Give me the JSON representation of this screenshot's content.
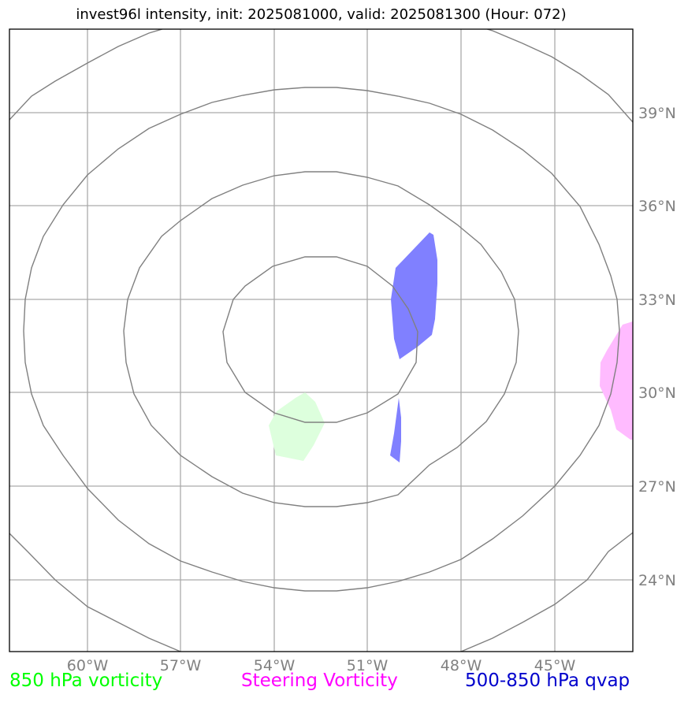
{
  "title": "invest96l intensity, init: 2025081000, valid: 2025081300 (Hour: 072)",
  "map": {
    "lat_labels": [
      "39°N",
      "36°N",
      "33°N",
      "30°N",
      "27°N",
      "24°N"
    ],
    "lon_labels": [
      "60°W",
      "57°W",
      "54°W",
      "51°W",
      "48°W",
      "45°W"
    ],
    "grid_color": "#aaaaaa",
    "contour_color": "#808080",
    "label_color": "#808080"
  },
  "fields": {
    "vorticity_850": {
      "color": "#ddffdd"
    },
    "steering_vorticity": {
      "color": "#ffbbff"
    },
    "qvap_500_850": {
      "color": "#8080ff"
    }
  },
  "legend": {
    "vorticity_850": {
      "label": "850 hPa vorticity",
      "color": "#00ff00"
    },
    "steering_vorticity": {
      "label": "Steering Vorticity",
      "color": "#ff00ff"
    },
    "qvap_500_850": {
      "label": "500-850 hPa qvap",
      "color": "#0000cc"
    }
  }
}
